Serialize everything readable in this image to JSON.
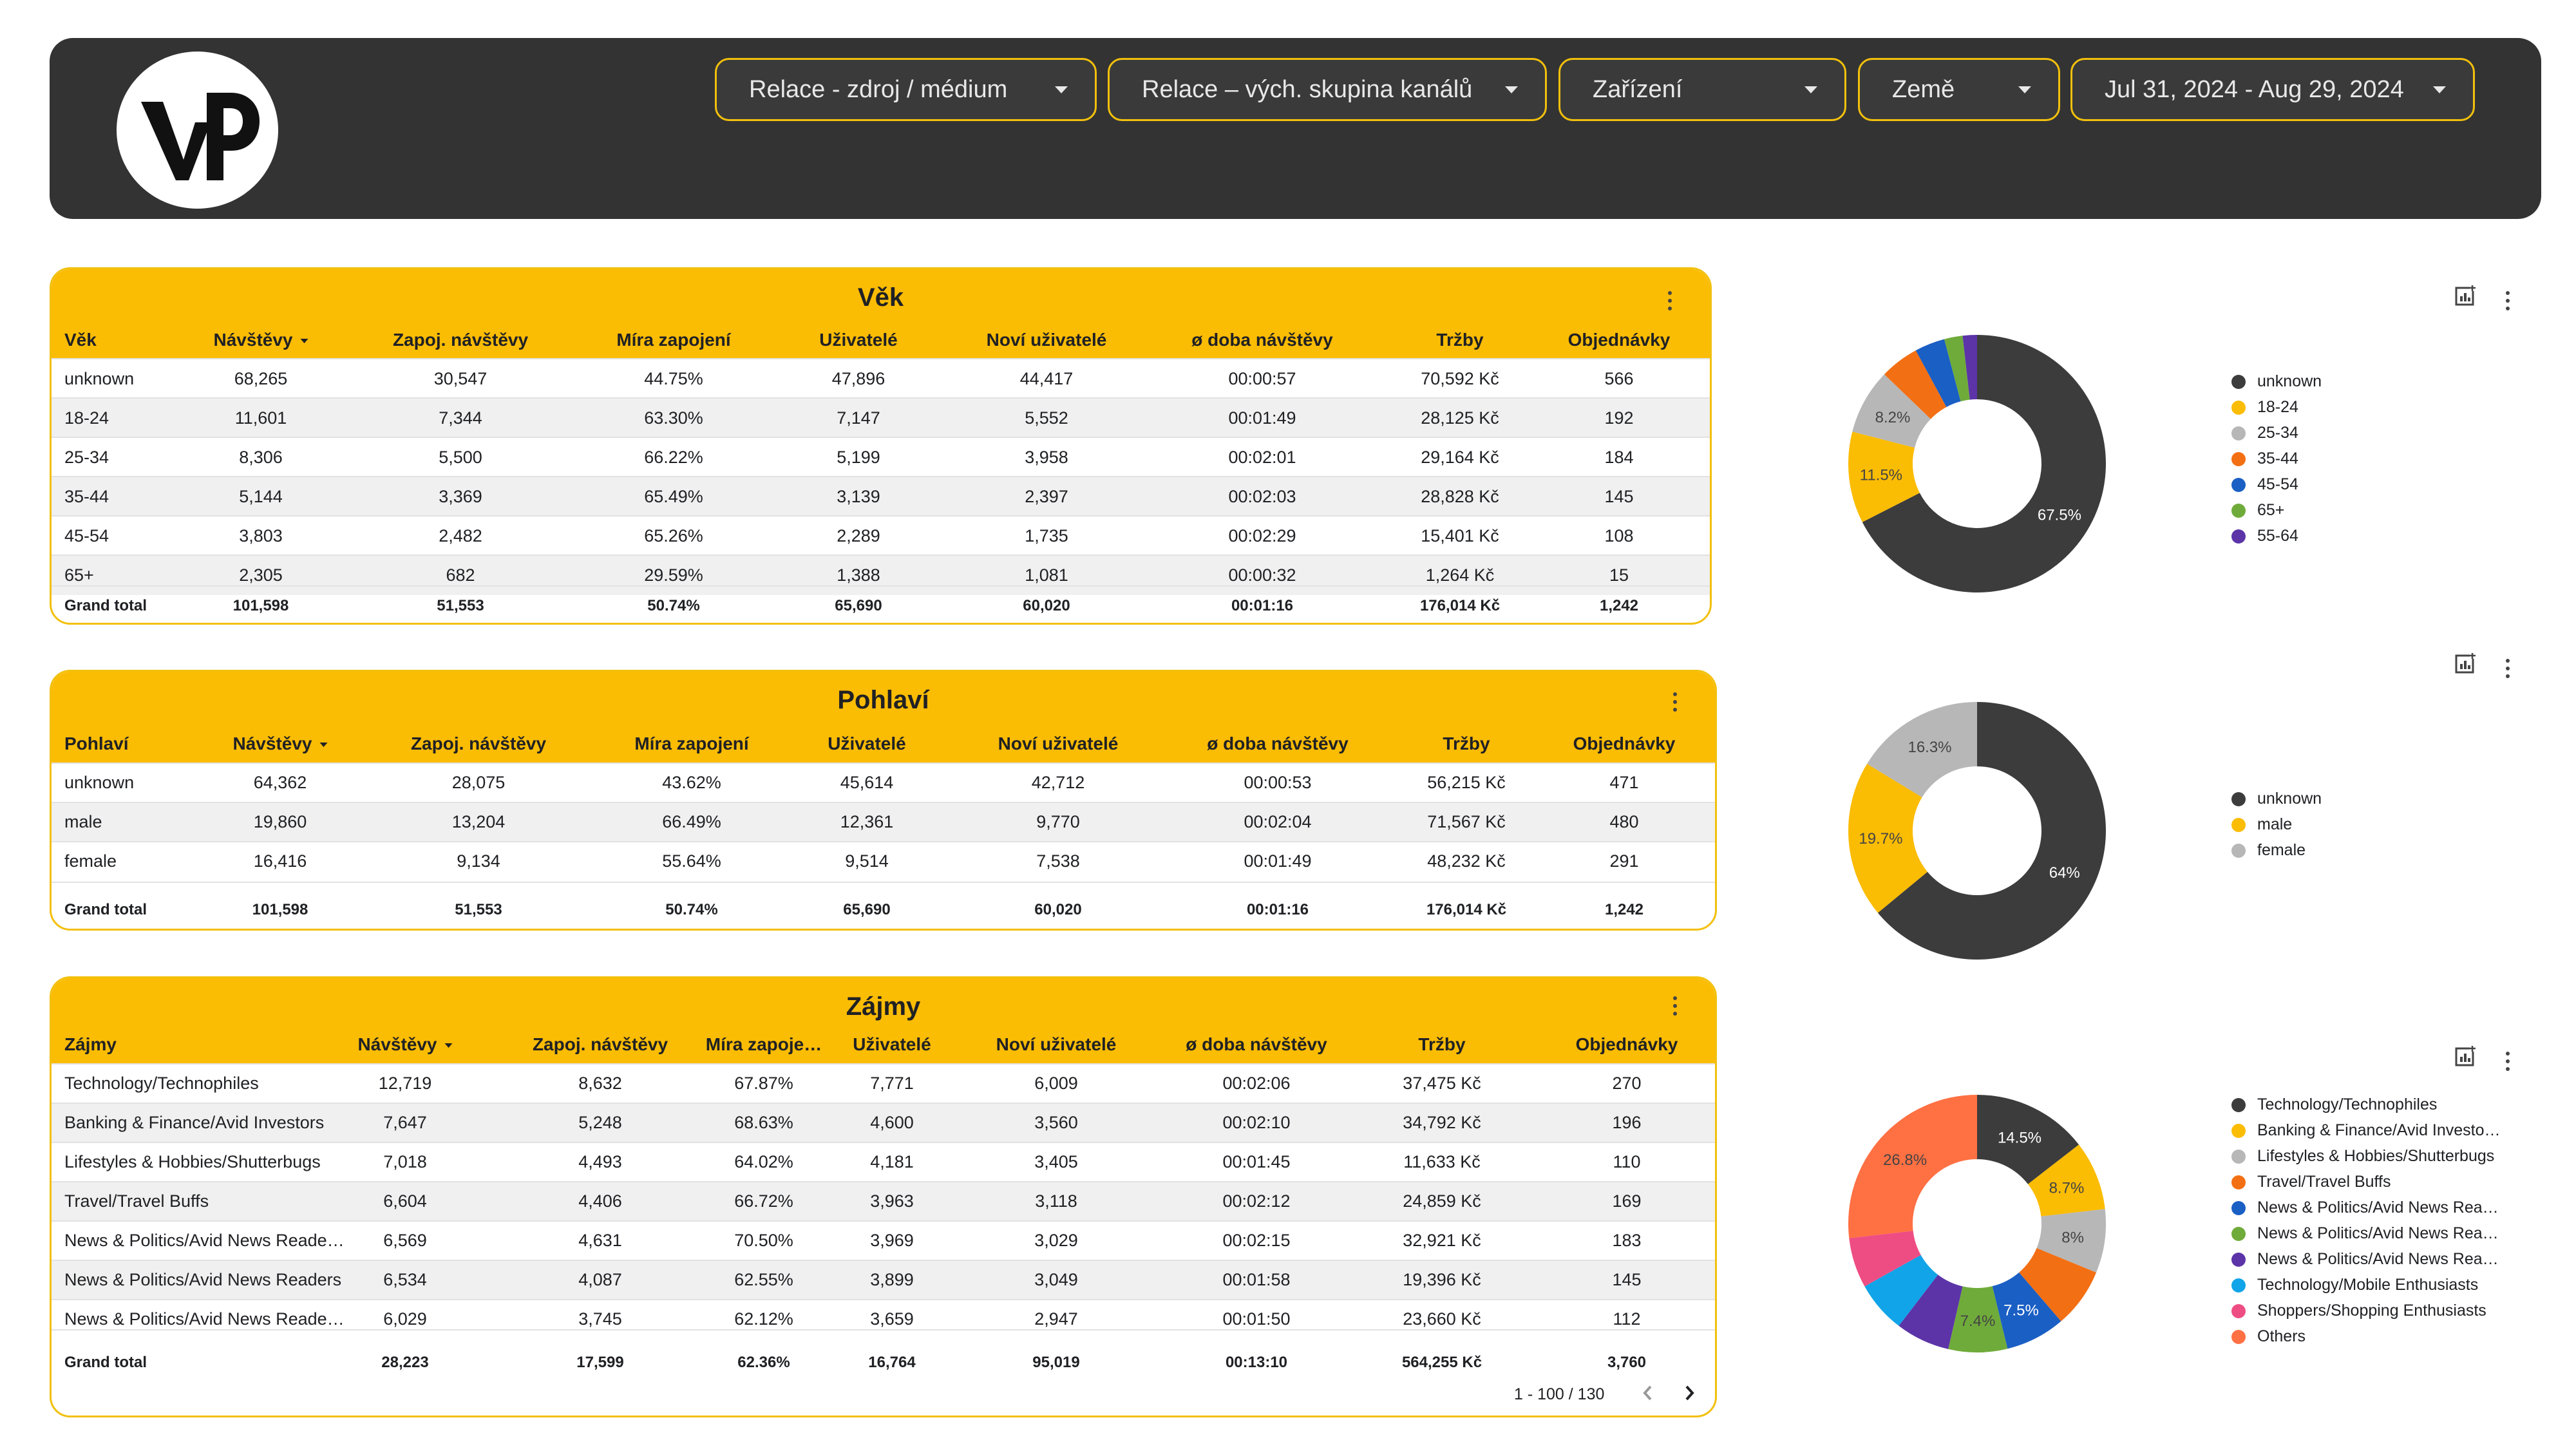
{
  "filters": [
    {
      "label": "Relace - zdroj / médium"
    },
    {
      "label": "Relace – vých. skupina kanálů"
    },
    {
      "label": "Zařízení"
    },
    {
      "label": "Země"
    },
    {
      "label": "Jul 31, 2024 - Aug 29, 2024"
    }
  ],
  "colors": {
    "accent": "#fbbc04",
    "header_bg": "#333333"
  },
  "vek": {
    "title": "Věk",
    "headers": [
      "Věk",
      "Návštěvy",
      "Zapoj. návštěvy",
      "Míra zapojení",
      "Uživatelé",
      "Noví uživatelé",
      "ø doba návštěvy",
      "Tržby",
      "Objednávky"
    ],
    "rows": [
      [
        "unknown",
        "68,265",
        "30,547",
        "44.75%",
        "47,896",
        "44,417",
        "00:00:57",
        "70,592 Kč",
        "566"
      ],
      [
        "18-24",
        "11,601",
        "7,344",
        "63.30%",
        "7,147",
        "5,552",
        "00:01:49",
        "28,125 Kč",
        "192"
      ],
      [
        "25-34",
        "8,306",
        "5,500",
        "66.22%",
        "5,199",
        "3,958",
        "00:02:01",
        "29,164 Kč",
        "184"
      ],
      [
        "35-44",
        "5,144",
        "3,369",
        "65.49%",
        "3,139",
        "2,397",
        "00:02:03",
        "28,828 Kč",
        "145"
      ],
      [
        "45-54",
        "3,803",
        "2,482",
        "65.26%",
        "2,289",
        "1,735",
        "00:02:29",
        "15,401 Kč",
        "108"
      ],
      [
        "65+",
        "2,305",
        "682",
        "29.59%",
        "1,388",
        "1,081",
        "00:00:32",
        "1,264 Kč",
        "15"
      ]
    ],
    "total": [
      "Grand total",
      "101,598",
      "51,553",
      "50.74%",
      "65,690",
      "60,020",
      "00:01:16",
      "176,014 Kč",
      "1,242"
    ]
  },
  "pohlavi": {
    "title": "Pohlaví",
    "headers": [
      "Pohlaví",
      "Návštěvy",
      "Zapoj. návštěvy",
      "Míra zapojení",
      "Uživatelé",
      "Noví uživatelé",
      "ø doba návštěvy",
      "Tržby",
      "Objednávky"
    ],
    "rows": [
      [
        "unknown",
        "64,362",
        "28,075",
        "43.62%",
        "45,614",
        "42,712",
        "00:00:53",
        "56,215 Kč",
        "471"
      ],
      [
        "male",
        "19,860",
        "13,204",
        "66.49%",
        "12,361",
        "9,770",
        "00:02:04",
        "71,567 Kč",
        "480"
      ],
      [
        "female",
        "16,416",
        "9,134",
        "55.64%",
        "9,514",
        "7,538",
        "00:01:49",
        "48,232 Kč",
        "291"
      ]
    ],
    "total": [
      "Grand total",
      "101,598",
      "51,553",
      "50.74%",
      "65,690",
      "60,020",
      "00:01:16",
      "176,014 Kč",
      "1,242"
    ]
  },
  "zajmy": {
    "title": "Zájmy",
    "headers": [
      "Zájmy",
      "Návštěvy",
      "Zapoj. návštěvy",
      "Míra zapoje…",
      "Uživatelé",
      "Noví uživatelé",
      "ø doba návštěvy",
      "Tržby",
      "Objednávky"
    ],
    "rows": [
      [
        "Technology/Technophiles",
        "12,719",
        "8,632",
        "67.87%",
        "7,771",
        "6,009",
        "00:02:06",
        "37,475 Kč",
        "270"
      ],
      [
        "Banking & Finance/Avid Investors",
        "7,647",
        "5,248",
        "68.63%",
        "4,600",
        "3,560",
        "00:02:10",
        "34,792 Kč",
        "196"
      ],
      [
        "Lifestyles & Hobbies/Shutterbugs",
        "7,018",
        "4,493",
        "64.02%",
        "4,181",
        "3,405",
        "00:01:45",
        "11,633 Kč",
        "110"
      ],
      [
        "Travel/Travel Buffs",
        "6,604",
        "4,406",
        "66.72%",
        "3,963",
        "3,118",
        "00:02:12",
        "24,859 Kč",
        "169"
      ],
      [
        "News & Politics/Avid News Reade…",
        "6,569",
        "4,631",
        "70.50%",
        "3,969",
        "3,029",
        "00:02:15",
        "32,921 Kč",
        "183"
      ],
      [
        "News & Politics/Avid News Readers",
        "6,534",
        "4,087",
        "62.55%",
        "3,899",
        "3,049",
        "00:01:58",
        "19,396 Kč",
        "145"
      ],
      [
        "News & Politics/Avid News Reade…",
        "6,029",
        "3,745",
        "62.12%",
        "3,659",
        "2,947",
        "00:01:50",
        "23,660 Kč",
        "112"
      ]
    ],
    "total": [
      "Grand total",
      "28,223",
      "17,599",
      "62.36%",
      "16,764",
      "95,019",
      "00:13:10",
      "564,255 Kč",
      "3,760"
    ],
    "pager": "1 - 100 / 130"
  },
  "chart_data": [
    {
      "type": "pie",
      "categories": [
        "unknown",
        "18-24",
        "25-34",
        "35-44",
        "45-54",
        "65+",
        "55-64"
      ],
      "values": [
        67.5,
        11.5,
        8.2,
        4.9,
        3.8,
        2.3,
        1.8
      ],
      "value_labels": [
        "67.5%",
        "11.5%",
        "8.2%",
        "",
        "",
        "",
        ""
      ],
      "colors": [
        "#3c3c3c",
        "#fbbc04",
        "#b7b7b7",
        "#f36f13",
        "#1a5fc4",
        "#6fab3a",
        "#5c34a8"
      ],
      "legend": "right"
    },
    {
      "type": "pie",
      "categories": [
        "unknown",
        "male",
        "female"
      ],
      "values": [
        64,
        19.7,
        16.3
      ],
      "value_labels": [
        "64%",
        "19.7%",
        "16.3%"
      ],
      "colors": [
        "#3c3c3c",
        "#fbbc04",
        "#b7b7b7"
      ],
      "legend": "right"
    },
    {
      "type": "pie",
      "categories": [
        "Technology/Technophiles",
        "Banking & Finance/Avid Investo…",
        "Lifestyles & Hobbies/Shutterbugs",
        "Travel/Travel Buffs",
        "News & Politics/Avid News Rea…",
        "News & Politics/Avid News Rea…",
        "News & Politics/Avid News Rea…",
        "Technology/Mobile Enthusiasts",
        "Shoppers/Shopping Enthusiasts",
        "Others"
      ],
      "values": [
        14.5,
        8.7,
        8,
        7.5,
        7.5,
        7.4,
        6.8,
        6.5,
        6.3,
        26.8
      ],
      "value_labels": [
        "14.5%",
        "8.7%",
        "8%",
        "",
        "7.5%",
        "7.4%",
        "",
        "",
        "",
        "26.8%"
      ],
      "colors": [
        "#3c3c3c",
        "#fbbc04",
        "#b7b7b7",
        "#f36f13",
        "#1a5fc4",
        "#6fab3a",
        "#5c34a8",
        "#12a4e8",
        "#ee4d84",
        "#ff7043"
      ],
      "legend": "right"
    }
  ]
}
